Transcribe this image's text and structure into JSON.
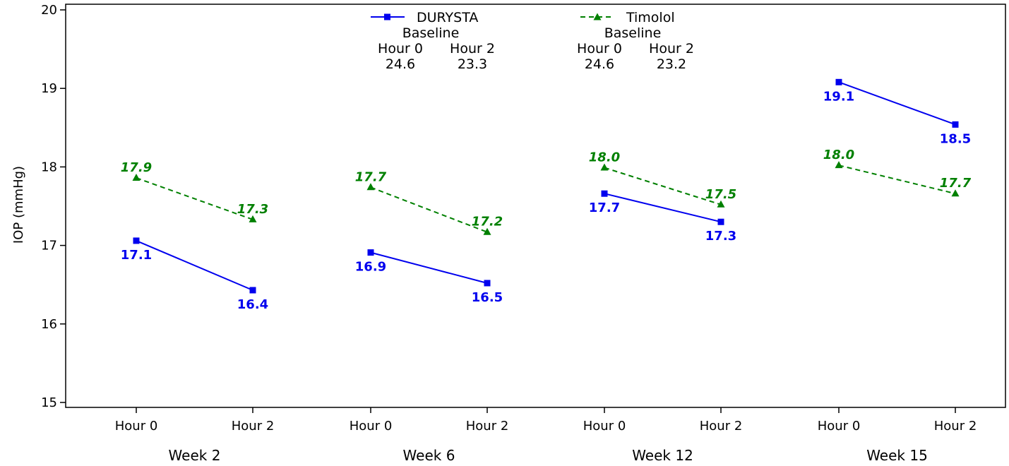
{
  "chart_data": {
    "type": "line",
    "xlabel": "",
    "ylabel": "IOP (mmHg)",
    "ylim": [
      15,
      20
    ],
    "yticks": [
      15,
      16,
      17,
      18,
      19,
      20
    ],
    "grid": false,
    "legend_position": "top",
    "groups": [
      "Week 2",
      "Week 6",
      "Week 12",
      "Week 15"
    ],
    "timepoints": [
      "Hour 0",
      "Hour 2"
    ],
    "series": [
      {
        "name": "DURYSTA",
        "color": "#0000ee",
        "line_style": "solid",
        "marker": "square",
        "baseline": {
          "label": "Baseline",
          "hour0_label": "Hour 0",
          "hour2_label": "Hour 2",
          "hour0": "24.6",
          "hour2": "23.3"
        },
        "values": [
          [
            17.06,
            16.43
          ],
          [
            16.91,
            16.52
          ],
          [
            17.66,
            17.3
          ],
          [
            19.08,
            18.54
          ]
        ],
        "labels": [
          [
            "17.1",
            "16.4"
          ],
          [
            "16.9",
            "16.5"
          ],
          [
            "17.7",
            "17.3"
          ],
          [
            "19.1",
            "18.5"
          ]
        ]
      },
      {
        "name": "Timolol",
        "color": "#008000",
        "line_style": "dashed",
        "marker": "triangle",
        "baseline": {
          "label": "Baseline",
          "hour0_label": "Hour 0",
          "hour2_label": "Hour 2",
          "hour0": "24.6",
          "hour2": "23.2"
        },
        "values": [
          [
            17.86,
            17.33
          ],
          [
            17.74,
            17.17
          ],
          [
            17.99,
            17.52
          ],
          [
            18.02,
            17.66
          ]
        ],
        "labels": [
          [
            "17.9",
            "17.3"
          ],
          [
            "17.7",
            "17.2"
          ],
          [
            "18.0",
            "17.5"
          ],
          [
            "18.0",
            "17.7"
          ]
        ]
      }
    ]
  }
}
